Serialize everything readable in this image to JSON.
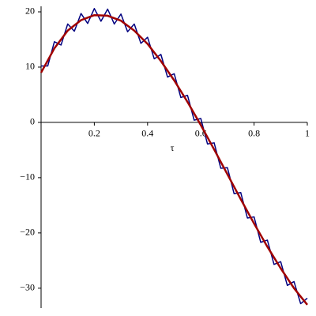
{
  "chart_data": {
    "type": "line",
    "xlabel": "τ",
    "xlim": [
      0,
      1
    ],
    "ylim": [
      -33.6,
      21
    ],
    "xticks": [
      0.2,
      0.4,
      0.6,
      0.8,
      1
    ],
    "yticks": [
      {
        "value": -30,
        "label": "−30"
      },
      {
        "value": -20,
        "label": "−20"
      },
      {
        "value": -10,
        "label": "−10"
      },
      0,
      10,
      20
    ],
    "series": [
      {
        "color": "#000080",
        "x": [
          0,
          0.025,
          0.05,
          0.075,
          0.1,
          0.125,
          0.15,
          0.175,
          0.2,
          0.225,
          0.25,
          0.275,
          0.3,
          0.325,
          0.35,
          0.375,
          0.4,
          0.425,
          0.45,
          0.475,
          0.5,
          0.525,
          0.55,
          0.575,
          0.6,
          0.625,
          0.65,
          0.675,
          0.7,
          0.725,
          0.75,
          0.775,
          0.8,
          0.825,
          0.85,
          0.875,
          0.9,
          0.925,
          0.95,
          0.975,
          1
        ],
        "values": [
          10.2,
          10.2,
          14.6,
          14.0,
          17.8,
          16.5,
          19.7,
          17.9,
          20.6,
          18.3,
          20.5,
          17.8,
          19.6,
          16.4,
          17.8,
          14.3,
          15.4,
          11.5,
          12.3,
          8.2,
          8.8,
          4.5,
          4.9,
          0.4,
          0.7,
          -3.9,
          -3.7,
          -8.3,
          -8.2,
          -12.9,
          -12.7,
          -17.3,
          -17.1,
          -21.7,
          -21.3,
          -25.7,
          -25.2,
          -29.5,
          -28.8,
          -32.8,
          -31.8
        ]
      },
      {
        "color": "#a00000",
        "x": [
          0,
          0.05,
          0.1,
          0.15,
          0.2,
          0.25,
          0.3,
          0.35,
          0.4,
          0.45,
          0.5,
          0.55,
          0.6,
          0.65,
          0.7,
          0.75,
          0.8,
          0.85,
          0.9,
          0.95,
          1
        ],
        "values": [
          9.0,
          13.4,
          16.6,
          18.5,
          19.4,
          19.3,
          18.4,
          16.6,
          14.2,
          11.1,
          7.6,
          3.7,
          -0.5,
          -4.9,
          -9.4,
          -13.9,
          -18.3,
          -22.5,
          -26.4,
          -30.0,
          -33.0
        ]
      }
    ]
  }
}
